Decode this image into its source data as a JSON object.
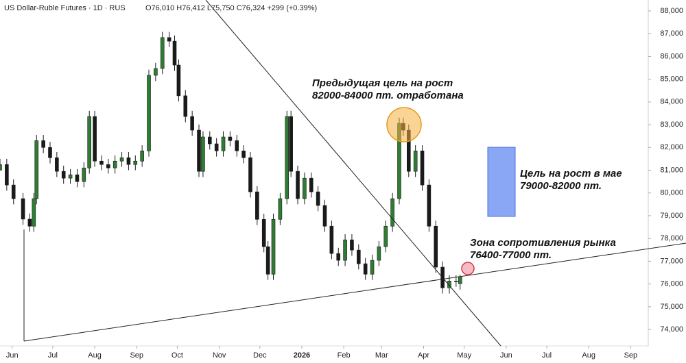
{
  "chart_data": {
    "type": "candlestick",
    "title": "US Dollar-Ruble Futures · 1D · RUS",
    "ohlc_text": "O76,010 H76,412 L75,750 C76,324 +299 (+0.39%)",
    "up_color": "#2e7d32",
    "down_color": "#1a1a1a",
    "xlim": [
      -9,
      470
    ],
    "ylim": [
      73280,
      88480
    ],
    "xticks": [
      {
        "value": 0,
        "label": "Jun"
      },
      {
        "value": 30,
        "label": "Jul"
      },
      {
        "value": 61,
        "label": "Aug"
      },
      {
        "value": 92,
        "label": "Sep"
      },
      {
        "value": 122,
        "label": "Oct"
      },
      {
        "value": 153,
        "label": "Nov"
      },
      {
        "value": 183,
        "label": "Dec"
      },
      {
        "value": 214,
        "label": "2026"
      },
      {
        "value": 245,
        "label": "Feb"
      },
      {
        "value": 273,
        "label": "Mar"
      },
      {
        "value": 304,
        "label": "Apr"
      },
      {
        "value": 334,
        "label": "May"
      },
      {
        "value": 365,
        "label": "Jun"
      },
      {
        "value": 395,
        "label": "Jul"
      },
      {
        "value": 426,
        "label": "Aug"
      },
      {
        "value": 457,
        "label": "Sep"
      }
    ],
    "yticks": [
      {
        "value": 88000,
        "label": "88,000"
      },
      {
        "value": 87000,
        "label": "87,000"
      },
      {
        "value": 86000,
        "label": "86,000"
      },
      {
        "value": 85000,
        "label": "85,000"
      },
      {
        "value": 84000,
        "label": "84,000"
      },
      {
        "value": 83000,
        "label": "83,000"
      },
      {
        "value": 82000,
        "label": "82,000"
      },
      {
        "value": 81000,
        "label": "81,000"
      },
      {
        "value": 80000,
        "label": "80,000"
      },
      {
        "value": 79000,
        "label": "79,000"
      },
      {
        "value": 78000,
        "label": "78,000"
      },
      {
        "value": 77000,
        "label": "77,000"
      },
      {
        "value": 76000,
        "label": "76,000"
      },
      {
        "value": 75000,
        "label": "75,000"
      },
      {
        "value": 74000,
        "label": "74,000"
      }
    ],
    "candles": [
      [
        -9,
        81000,
        81500,
        81000,
        81250
      ],
      [
        -4,
        81250,
        81500,
        80100,
        80350
      ],
      [
        1,
        80350,
        80600,
        79500,
        79750
      ],
      [
        8,
        79750,
        80000,
        78600,
        78850
      ],
      [
        13,
        78850,
        79100,
        78290,
        78540
      ],
      [
        16,
        78540,
        80000,
        78290,
        79750
      ],
      [
        18,
        79750,
        82550,
        79500,
        82300
      ],
      [
        23,
        82300,
        82550,
        81750,
        82000
      ],
      [
        28,
        82000,
        82250,
        81300,
        81550
      ],
      [
        33,
        81550,
        81800,
        80700,
        80950
      ],
      [
        38,
        80950,
        81200,
        80400,
        80650
      ],
      [
        43,
        80650,
        81050,
        80400,
        80800
      ],
      [
        48,
        80800,
        81050,
        80250,
        80500
      ],
      [
        53,
        80500,
        81350,
        80250,
        81100
      ],
      [
        57,
        81100,
        83610,
        80850,
        83360
      ],
      [
        61,
        83360,
        83610,
        81150,
        81400
      ],
      [
        66,
        81400,
        81650,
        81000,
        81250
      ],
      [
        71,
        81250,
        81500,
        80850,
        81100
      ],
      [
        76,
        81100,
        81650,
        80850,
        81400
      ],
      [
        81,
        81400,
        81800,
        81150,
        81550
      ],
      [
        86,
        81550,
        81800,
        81000,
        81250
      ],
      [
        91,
        81250,
        81650,
        81000,
        81400
      ],
      [
        96,
        81400,
        82100,
        81150,
        81850
      ],
      [
        101,
        81850,
        85420,
        81600,
        85170
      ],
      [
        106,
        85170,
        85720,
        84920,
        85470
      ],
      [
        111,
        85470,
        87080,
        85220,
        86830
      ],
      [
        116,
        86830,
        87080,
        86420,
        86670
      ],
      [
        120,
        86670,
        86920,
        85370,
        85620
      ],
      [
        123,
        85620,
        85870,
        84020,
        84270
      ],
      [
        128,
        84270,
        84520,
        83110,
        83360
      ],
      [
        133,
        83360,
        83610,
        82510,
        82760
      ],
      [
        138,
        82760,
        83010,
        80700,
        80950
      ],
      [
        141,
        80950,
        82710,
        80700,
        82460
      ],
      [
        146,
        82460,
        82710,
        81910,
        82160
      ],
      [
        151,
        82160,
        82410,
        81600,
        81850
      ],
      [
        156,
        81850,
        82710,
        81600,
        82460
      ],
      [
        161,
        82460,
        82710,
        82050,
        82300
      ],
      [
        166,
        82300,
        82550,
        81600,
        81850
      ],
      [
        171,
        81850,
        82100,
        81300,
        81550
      ],
      [
        176,
        81550,
        81800,
        79800,
        80050
      ],
      [
        181,
        80050,
        80300,
        78590,
        78840
      ],
      [
        186,
        78840,
        79090,
        77390,
        77640
      ],
      [
        189,
        77640,
        77890,
        76180,
        76430
      ],
      [
        193,
        76430,
        79090,
        76180,
        78840
      ],
      [
        198,
        78840,
        80000,
        78590,
        79750
      ],
      [
        203,
        79750,
        83610,
        79500,
        83360
      ],
      [
        206,
        83360,
        83610,
        80700,
        80950
      ],
      [
        211,
        80950,
        81200,
        79500,
        79750
      ],
      [
        216,
        79750,
        80900,
        79500,
        80650
      ],
      [
        221,
        80650,
        80900,
        79800,
        80050
      ],
      [
        226,
        80050,
        80300,
        79200,
        79450
      ],
      [
        231,
        79450,
        79700,
        78290,
        78540
      ],
      [
        236,
        78540,
        78790,
        77090,
        77340
      ],
      [
        241,
        77340,
        77590,
        76790,
        77040
      ],
      [
        246,
        77040,
        78190,
        76790,
        77940
      ],
      [
        251,
        77940,
        78190,
        77240,
        77490
      ],
      [
        256,
        77490,
        77740,
        76640,
        76890
      ],
      [
        261,
        76890,
        77140,
        76180,
        76430
      ],
      [
        266,
        76430,
        77290,
        76180,
        77040
      ],
      [
        271,
        77040,
        77890,
        76790,
        77640
      ],
      [
        276,
        77640,
        78790,
        77390,
        78540
      ],
      [
        281,
        78540,
        80000,
        78290,
        79750
      ],
      [
        286,
        79750,
        83310,
        79500,
        83060
      ],
      [
        289,
        83060,
        83310,
        82510,
        82760
      ],
      [
        293,
        82760,
        83010,
        80700,
        80950
      ],
      [
        298,
        80950,
        82100,
        80700,
        81850
      ],
      [
        303,
        81850,
        82100,
        80100,
        80350
      ],
      [
        308,
        80350,
        80600,
        78290,
        78540
      ],
      [
        313,
        78540,
        78790,
        76490,
        76740
      ],
      [
        318,
        76740,
        76990,
        75580,
        75830
      ],
      [
        323,
        75830,
        76380,
        75580,
        76130
      ],
      [
        328,
        76130,
        76380,
        75880,
        76130
      ],
      [
        331,
        76010,
        76412,
        75750,
        76324
      ]
    ],
    "annotations": [
      "Предыдущая цель на рост",
      "82000-84000 пт. отработана",
      "Цель на рост в мае",
      "79000-82000 пт.",
      "Зона сопротивления рынка",
      "76400-77000 пт."
    ]
  }
}
